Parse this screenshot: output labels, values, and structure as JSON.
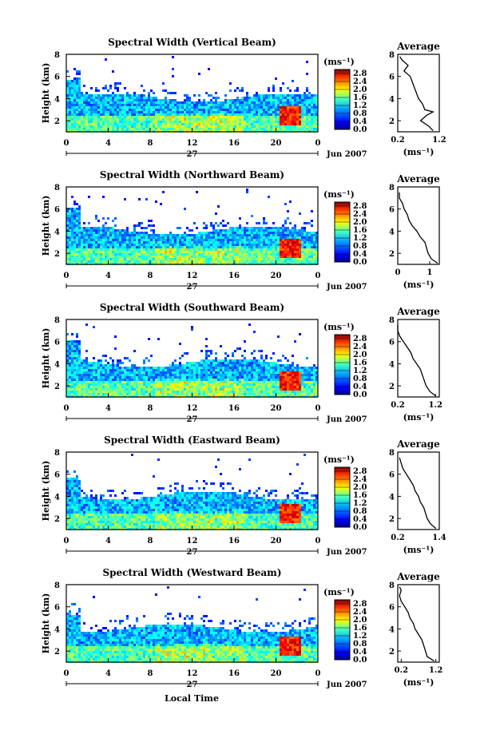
{
  "chart_data": {
    "type": "heatmap",
    "units_label": "(ms⁻¹)",
    "colorbar_ticks": [
      "0.0",
      "0.4",
      "0.8",
      "1.2",
      "1.6",
      "2.0",
      "2.4",
      "2.8"
    ],
    "colorbar_range": [
      0,
      3.0
    ],
    "ylabel": "Height (km)",
    "ylim": [
      1,
      8
    ],
    "yticks": [
      "2",
      "4",
      "6",
      "8"
    ],
    "xlim": [
      0,
      24
    ],
    "xticks": [
      "0",
      "4",
      "8",
      "12",
      "16",
      "20",
      "0"
    ],
    "date_day": "27",
    "date_month": "Jun 2007",
    "xlabel": "Local Time",
    "average_title": "Average",
    "average_xlabel": "(ms⁻¹)",
    "panels": [
      {
        "title": "Spectral Width (Vertical Beam)",
        "avg_xticks": [
          "0.2",
          "1.2"
        ],
        "avg_xlim": [
          0.2,
          1.2
        ],
        "avg_profile": [
          {
            "h": 1.1,
            "v": 1.05
          },
          {
            "h": 1.5,
            "v": 0.95
          },
          {
            "h": 2.0,
            "v": 0.75
          },
          {
            "h": 2.5,
            "v": 0.9
          },
          {
            "h": 2.8,
            "v": 1.05
          },
          {
            "h": 3.0,
            "v": 0.85
          },
          {
            "h": 3.5,
            "v": 0.8
          },
          {
            "h": 4.0,
            "v": 0.7
          },
          {
            "h": 4.5,
            "v": 0.65
          },
          {
            "h": 5.0,
            "v": 0.6
          },
          {
            "h": 5.5,
            "v": 0.55
          },
          {
            "h": 6.0,
            "v": 0.5
          },
          {
            "h": 6.5,
            "v": 0.35
          },
          {
            "h": 7.0,
            "v": 0.45
          },
          {
            "h": 7.5,
            "v": 0.3
          },
          {
            "h": 7.8,
            "v": 0.25
          }
        ]
      },
      {
        "title": "Spectral Width (Northward Beam)",
        "avg_xticks": [
          "0",
          "1"
        ],
        "avg_xlim": [
          0,
          1.3
        ],
        "avg_profile": [
          {
            "h": 1.1,
            "v": 1.25
          },
          {
            "h": 1.5,
            "v": 1.05
          },
          {
            "h": 2.0,
            "v": 0.95
          },
          {
            "h": 2.5,
            "v": 0.9
          },
          {
            "h": 3.0,
            "v": 0.85
          },
          {
            "h": 3.5,
            "v": 0.7
          },
          {
            "h": 4.0,
            "v": 0.6
          },
          {
            "h": 4.5,
            "v": 0.45
          },
          {
            "h": 5.0,
            "v": 0.35
          },
          {
            "h": 5.5,
            "v": 0.3
          },
          {
            "h": 6.0,
            "v": 0.2
          },
          {
            "h": 6.5,
            "v": 0.15
          },
          {
            "h": 7.0,
            "v": 0.05
          },
          {
            "h": 7.5,
            "v": 0.05
          }
        ]
      },
      {
        "title": "Spectral Width (Southward Beam)",
        "avg_xticks": [
          "0.2",
          "1.2"
        ],
        "avg_xlim": [
          0.2,
          1.3
        ],
        "avg_profile": [
          {
            "h": 1.1,
            "v": 1.2
          },
          {
            "h": 1.5,
            "v": 1.05
          },
          {
            "h": 2.0,
            "v": 0.95
          },
          {
            "h": 2.5,
            "v": 0.9
          },
          {
            "h": 3.0,
            "v": 0.85
          },
          {
            "h": 3.5,
            "v": 0.8
          },
          {
            "h": 4.0,
            "v": 0.7
          },
          {
            "h": 4.5,
            "v": 0.6
          },
          {
            "h": 5.0,
            "v": 0.55
          },
          {
            "h": 5.5,
            "v": 0.45
          },
          {
            "h": 6.0,
            "v": 0.35
          },
          {
            "h": 6.5,
            "v": 0.25
          },
          {
            "h": 7.0,
            "v": 0.2
          },
          {
            "h": 7.5,
            "v": 0.2
          }
        ]
      },
      {
        "title": "Spectral Width (Eastward Beam)",
        "avg_xticks": [
          "0.2",
          "1.4"
        ],
        "avg_xlim": [
          0.2,
          1.4
        ],
        "avg_profile": [
          {
            "h": 1.1,
            "v": 1.3
          },
          {
            "h": 1.5,
            "v": 1.15
          },
          {
            "h": 2.0,
            "v": 1.05
          },
          {
            "h": 2.5,
            "v": 1.0
          },
          {
            "h": 3.0,
            "v": 0.95
          },
          {
            "h": 3.5,
            "v": 0.85
          },
          {
            "h": 4.0,
            "v": 0.8
          },
          {
            "h": 4.5,
            "v": 0.7
          },
          {
            "h": 5.0,
            "v": 0.65
          },
          {
            "h": 5.5,
            "v": 0.55
          },
          {
            "h": 6.0,
            "v": 0.45
          },
          {
            "h": 6.5,
            "v": 0.35
          },
          {
            "h": 7.0,
            "v": 0.3
          },
          {
            "h": 7.5,
            "v": 0.25
          }
        ]
      },
      {
        "title": "Spectral Width (Westward Beam)",
        "avg_xticks": [
          "0.2",
          "1.2"
        ],
        "avg_xlim": [
          0.1,
          1.3
        ],
        "avg_profile": [
          {
            "h": 1.1,
            "v": 1.15
          },
          {
            "h": 1.5,
            "v": 0.95
          },
          {
            "h": 2.0,
            "v": 0.9
          },
          {
            "h": 2.5,
            "v": 0.85
          },
          {
            "h": 3.0,
            "v": 0.8
          },
          {
            "h": 3.5,
            "v": 0.7
          },
          {
            "h": 4.0,
            "v": 0.6
          },
          {
            "h": 4.5,
            "v": 0.55
          },
          {
            "h": 5.0,
            "v": 0.45
          },
          {
            "h": 5.5,
            "v": 0.4
          },
          {
            "h": 6.0,
            "v": 0.3
          },
          {
            "h": 6.5,
            "v": 0.2
          },
          {
            "h": 7.0,
            "v": 0.15
          },
          {
            "h": 7.5,
            "v": 0.2
          },
          {
            "h": 7.8,
            "v": 0.15
          }
        ]
      }
    ]
  }
}
